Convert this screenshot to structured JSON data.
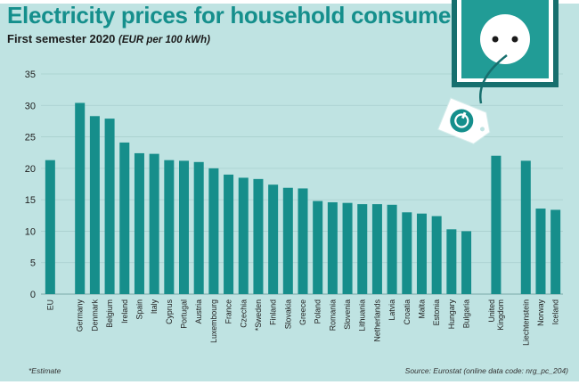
{
  "chart_data": {
    "type": "bar",
    "title": "Electricity prices for household consumers",
    "subtitle": "First semester 2020",
    "unit": "(EUR per 100 kWh)",
    "ylim": [
      0,
      35
    ],
    "yticks": [
      0,
      5,
      10,
      15,
      20,
      25,
      30,
      35
    ],
    "grid": true,
    "categories": [
      "EU",
      "Germany",
      "Denmark",
      "Belgium",
      "Ireland",
      "Spain",
      "Italy",
      "Cyprus",
      "Portugal",
      "Austria",
      "Luxembourg",
      "France",
      "Czechia",
      "*Sweden",
      "Finland",
      "Slovakia",
      "Greece",
      "Poland",
      "Romania",
      "Slovenia",
      "Lithuania",
      "Netherlands",
      "Latvia",
      "Croatia",
      "Malta",
      "Estonia",
      "Hungary",
      "Bulgaria",
      "United Kingdom",
      "Liechtenstein",
      "Norway",
      "Iceland"
    ],
    "category_lines": [
      [
        "EU"
      ],
      [
        "Germany"
      ],
      [
        "Denmark"
      ],
      [
        "Belgium"
      ],
      [
        "Ireland"
      ],
      [
        "Spain"
      ],
      [
        "Italy"
      ],
      [
        "Cyprus"
      ],
      [
        "Portugal"
      ],
      [
        "Austria"
      ],
      [
        "Luxembourg"
      ],
      [
        "France"
      ],
      [
        "Czechia"
      ],
      [
        "*Sweden"
      ],
      [
        "Finland"
      ],
      [
        "Slovakia"
      ],
      [
        "Greece"
      ],
      [
        "Poland"
      ],
      [
        "Romania"
      ],
      [
        "Slovenia"
      ],
      [
        "Lithuania"
      ],
      [
        "Netherlands"
      ],
      [
        "Latvia"
      ],
      [
        "Croatia"
      ],
      [
        "Malta"
      ],
      [
        "Estonia"
      ],
      [
        "Hungary"
      ],
      [
        "Bulgaria"
      ],
      [
        "United",
        "Kingdom"
      ],
      [
        "Liechtenstein"
      ],
      [
        "Norway"
      ],
      [
        "Iceland"
      ]
    ],
    "values": [
      21.3,
      30.4,
      28.3,
      27.9,
      24.1,
      22.4,
      22.3,
      21.3,
      21.2,
      21.0,
      20.0,
      19.0,
      18.5,
      18.3,
      17.4,
      16.9,
      16.8,
      14.8,
      14.6,
      14.5,
      14.3,
      14.3,
      14.2,
      13.0,
      12.8,
      12.4,
      10.3,
      10.0,
      22.0,
      21.2,
      13.6,
      13.4
    ],
    "bar_color": "#168e8b"
  },
  "footnote": "*Estimate",
  "source": "Source: Eurostat (online data code: nrg_pc_204)",
  "colors": {
    "background": "#bfe3e2",
    "accent": "#158f8c",
    "dark_teal": "#176f6e"
  },
  "illustration": {
    "socket_icon": "power-socket-icon",
    "tag_icon": "energy-price-tag-icon"
  }
}
